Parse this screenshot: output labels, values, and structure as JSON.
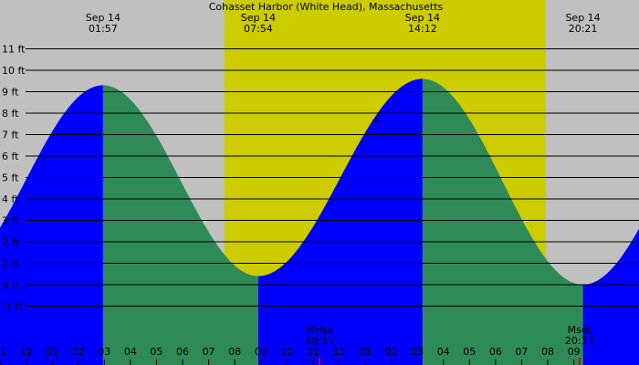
{
  "chart_data": {
    "type": "area",
    "title": "Cohasset Harbor (White Head), Massachusetts",
    "y_unit": "ft",
    "ylim": [
      -2,
      12
    ],
    "y_ticks": [
      -1,
      0,
      1,
      2,
      3,
      4,
      5,
      6,
      7,
      8,
      9,
      10,
      11
    ],
    "x_hours_range": [
      -2.0,
      22.5
    ],
    "x_tick_labels": [
      "11",
      "12",
      "01",
      "02",
      "03",
      "04",
      "05",
      "06",
      "07",
      "08",
      "09",
      "10",
      "11",
      "12",
      "01",
      "02",
      "03",
      "04",
      "05",
      "06",
      "07",
      "08",
      "09"
    ],
    "daylight": {
      "sunrise": "06:36",
      "sunset": "18:56"
    },
    "extremes": [
      {
        "date": "Sep 14",
        "time": "01:57",
        "type": "high",
        "height": 9.3
      },
      {
        "date": "Sep 14",
        "time": "07:54",
        "type": "low",
        "height": 0.4
      },
      {
        "date": "Sep 14",
        "time": "14:12",
        "type": "high",
        "height": 9.6
      },
      {
        "date": "Sep 14",
        "time": "20:21",
        "type": "low",
        "height": 0.0
      }
    ],
    "moon_events": [
      {
        "label": "Mrise",
        "time": "10:15"
      },
      {
        "label": "Mset",
        "time": "20:13"
      }
    ],
    "marker": {
      "symbol": "+",
      "time": "12:25",
      "height": 7.7
    },
    "colors": {
      "background": "#c0c0c0",
      "daylight": "#cccc00",
      "rising": "#0000ff",
      "falling": "#2e8b57",
      "moon_tick": "#cc0000",
      "gridline": "#000000"
    }
  }
}
